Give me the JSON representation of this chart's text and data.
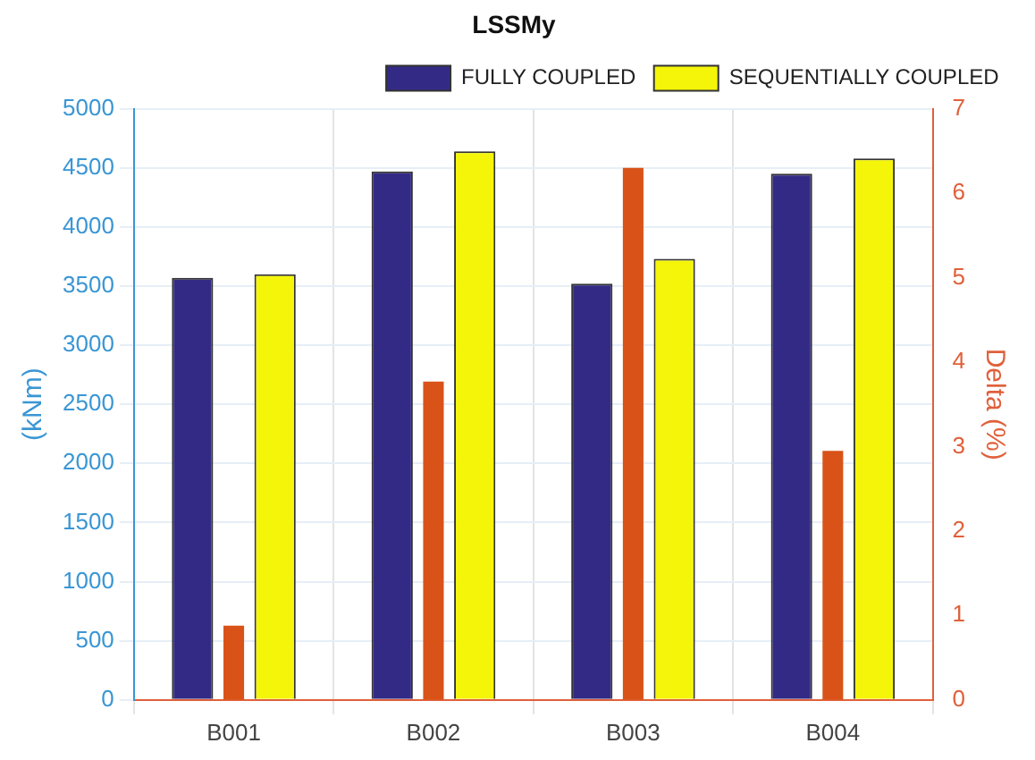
{
  "chart_data": {
    "type": "bar",
    "title": "LSSMy",
    "ylabel": "(kNm)",
    "y2label": "Delta (%)",
    "categories": [
      "B001",
      "B002",
      "B003",
      "B004"
    ],
    "series": [
      {
        "name": "FULLY COUPLED",
        "color": "#332a86",
        "values": [
          3570,
          4470,
          3520,
          4450
        ]
      },
      {
        "type": "bar",
        "axis": "y2",
        "color": "#d95319",
        "values": [
          0.88,
          3.77,
          6.3,
          2.95
        ]
      },
      {
        "name": "SEQUENTIALLY COUPLED",
        "color": "#f5f50a",
        "values": [
          3600,
          4640,
          3730,
          4580
        ]
      }
    ],
    "ylim": [
      0,
      5000
    ],
    "yticks": [
      0,
      500,
      1000,
      1500,
      2000,
      2500,
      3000,
      3500,
      4000,
      4500,
      5000
    ],
    "y2lim": [
      0,
      7
    ],
    "y2ticks": [
      0,
      1,
      2,
      3,
      4,
      5,
      6,
      7
    ],
    "grid": true,
    "legend": "top right"
  }
}
